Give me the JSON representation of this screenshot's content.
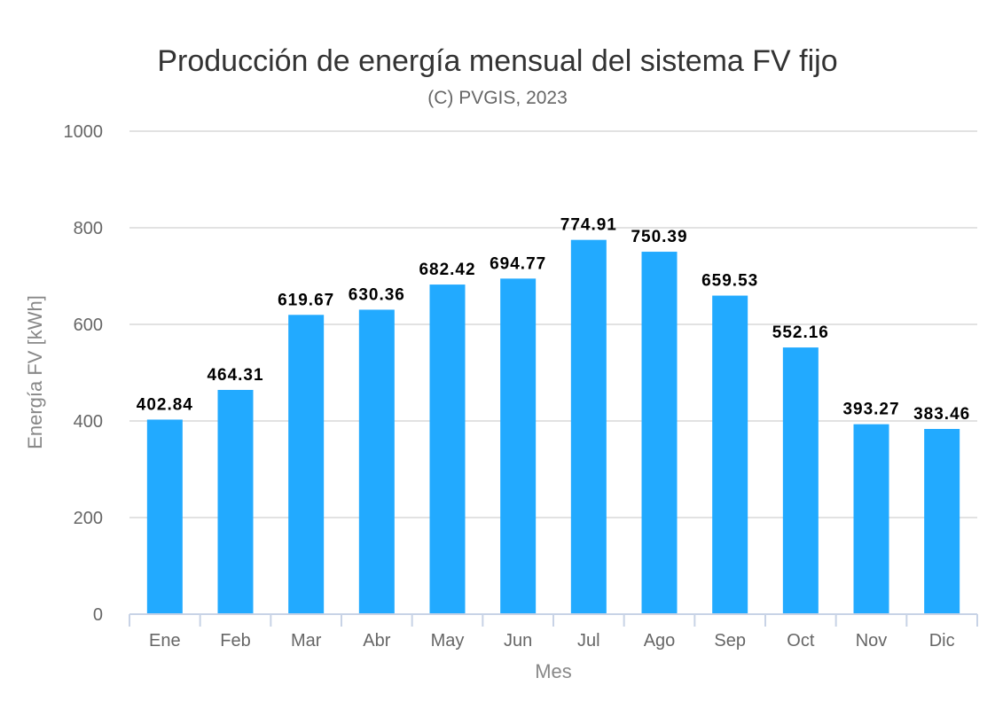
{
  "chart_data": {
    "type": "bar",
    "title": "Producción de energía mensual del sistema FV fijo",
    "subtitle": "(C) PVGIS, 2023",
    "xlabel": "Mes",
    "ylabel": "Energía FV [kWh]",
    "ylim": [
      0,
      1000
    ],
    "yticks": [
      "0",
      "200",
      "400",
      "600",
      "800",
      "1000"
    ],
    "grid": true,
    "bar_color": "#22aaff",
    "categories": [
      "Ene",
      "Feb",
      "Mar",
      "Abr",
      "May",
      "Jun",
      "Jul",
      "Ago",
      "Sep",
      "Oct",
      "Nov",
      "Dic"
    ],
    "values": [
      402.84,
      464.31,
      619.67,
      630.36,
      682.42,
      694.77,
      774.91,
      750.39,
      659.53,
      552.16,
      393.27,
      383.46
    ],
    "value_labels": [
      "402.84",
      "464.31",
      "619.67",
      "630.36",
      "682.42",
      "694.77",
      "774.91",
      "750.39",
      "659.53",
      "552.16",
      "393.27",
      "383.46"
    ]
  }
}
